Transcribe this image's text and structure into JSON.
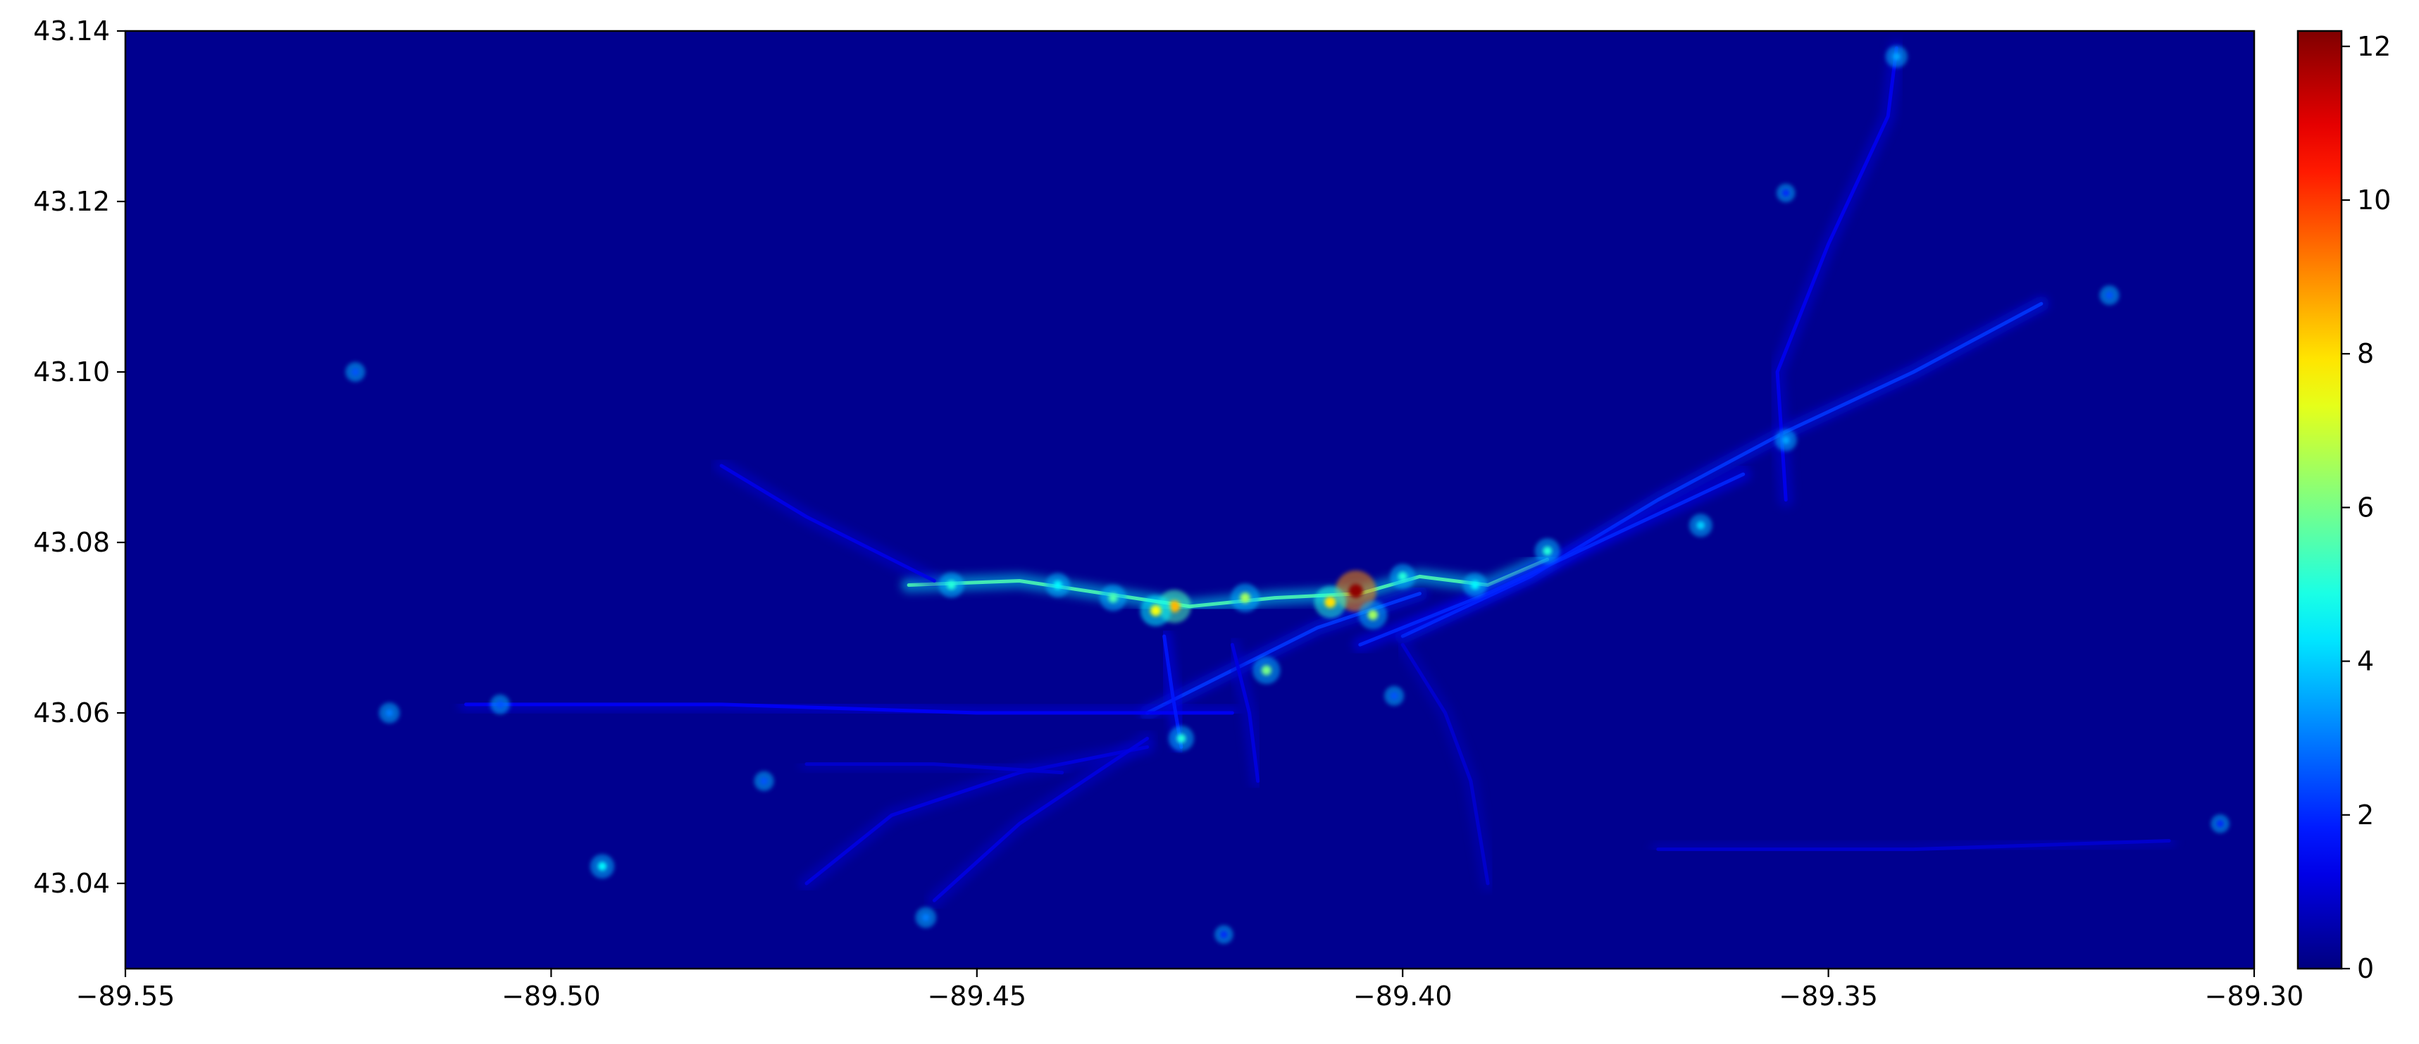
{
  "chart_data": {
    "type": "heatmap",
    "title": "",
    "xlabel": "",
    "ylabel": "",
    "xlim": [
      -89.55,
      -89.3
    ],
    "ylim": [
      43.03,
      43.14
    ],
    "x_ticks": [
      -89.55,
      -89.5,
      -89.45,
      -89.4,
      -89.35,
      -89.3
    ],
    "x_tick_labels": [
      "−89.55",
      "−89.50",
      "−89.45",
      "−89.40",
      "−89.35",
      "−89.30"
    ],
    "y_ticks": [
      43.04,
      43.06,
      43.08,
      43.1,
      43.12,
      43.14
    ],
    "y_tick_labels": [
      "43.04",
      "43.06",
      "43.08",
      "43.10",
      "43.12",
      "43.14"
    ],
    "colormap": "jet",
    "background_color": "#00008f",
    "colorbar": {
      "range": [
        0,
        12.2
      ],
      "ticks": [
        0,
        2,
        4,
        6,
        8,
        10,
        12
      ],
      "tick_labels": [
        "0",
        "2",
        "4",
        "6",
        "8",
        "10",
        "12"
      ]
    },
    "hotspots": [
      {
        "lon": -89.4055,
        "lat": 43.0743,
        "value": 12.0
      },
      {
        "lon": -89.4268,
        "lat": 43.0725,
        "value": 8.5
      },
      {
        "lon": -89.429,
        "lat": 43.072,
        "value": 7.5
      },
      {
        "lon": -89.4085,
        "lat": 43.073,
        "value": 8.0
      },
      {
        "lon": -89.4035,
        "lat": 43.0715,
        "value": 6.5
      },
      {
        "lon": -89.4185,
        "lat": 43.0735,
        "value": 6.5
      },
      {
        "lon": -89.434,
        "lat": 43.0735,
        "value": 5.5
      },
      {
        "lon": -89.416,
        "lat": 43.065,
        "value": 6.0
      },
      {
        "lon": -89.426,
        "lat": 43.057,
        "value": 5.0
      },
      {
        "lon": -89.453,
        "lat": 43.075,
        "value": 5.0
      },
      {
        "lon": -89.4405,
        "lat": 43.075,
        "value": 4.5
      },
      {
        "lon": -89.4,
        "lat": 43.076,
        "value": 5.0
      },
      {
        "lon": -89.3915,
        "lat": 43.075,
        "value": 4.5
      },
      {
        "lon": -89.383,
        "lat": 43.079,
        "value": 5.0
      },
      {
        "lon": -89.365,
        "lat": 43.082,
        "value": 4.0
      },
      {
        "lon": -89.342,
        "lat": 43.137,
        "value": 3.5
      },
      {
        "lon": -89.355,
        "lat": 43.092,
        "value": 3.5
      },
      {
        "lon": -89.494,
        "lat": 43.042,
        "value": 4.5
      },
      {
        "lon": -89.519,
        "lat": 43.06,
        "value": 3.0
      },
      {
        "lon": -89.506,
        "lat": 43.061,
        "value": 2.5
      },
      {
        "lon": -89.523,
        "lat": 43.1,
        "value": 2.5
      },
      {
        "lon": -89.456,
        "lat": 43.036,
        "value": 3.0
      },
      {
        "lon": -89.475,
        "lat": 43.052,
        "value": 2.5
      },
      {
        "lon": -89.401,
        "lat": 43.062,
        "value": 2.5
      },
      {
        "lon": -89.317,
        "lat": 43.109,
        "value": 2.5
      },
      {
        "lon": -89.304,
        "lat": 43.047,
        "value": 2.0
      },
      {
        "lon": -89.421,
        "lat": 43.034,
        "value": 2.0
      },
      {
        "lon": -89.355,
        "lat": 43.121,
        "value": 2.0
      }
    ],
    "corridors": [
      {
        "points": [
          [
            -89.458,
            43.075
          ],
          [
            -89.445,
            43.0755
          ],
          [
            -89.435,
            43.074
          ],
          [
            -89.425,
            43.0725
          ],
          [
            -89.415,
            43.0735
          ],
          [
            -89.405,
            43.074
          ],
          [
            -89.398,
            43.076
          ],
          [
            -89.39,
            43.075
          ],
          [
            -89.383,
            43.078
          ]
        ],
        "value": 5.5
      },
      {
        "points": [
          [
            -89.4,
            43.069
          ],
          [
            -89.385,
            43.076
          ],
          [
            -89.37,
            43.085
          ],
          [
            -89.355,
            43.093
          ],
          [
            -89.34,
            43.1
          ],
          [
            -89.325,
            43.108
          ]
        ],
        "value": 2.2
      },
      {
        "points": [
          [
            -89.405,
            43.068
          ],
          [
            -89.39,
            43.074
          ],
          [
            -89.375,
            43.081
          ],
          [
            -89.36,
            43.088
          ]
        ],
        "value": 2.0
      },
      {
        "points": [
          [
            -89.43,
            43.06
          ],
          [
            -89.42,
            43.065
          ],
          [
            -89.41,
            43.07
          ],
          [
            -89.398,
            43.074
          ]
        ],
        "value": 2.2
      },
      {
        "points": [
          [
            -89.51,
            43.061
          ],
          [
            -89.48,
            43.061
          ],
          [
            -89.45,
            43.06
          ],
          [
            -89.42,
            43.06
          ]
        ],
        "value": 1.5
      },
      {
        "points": [
          [
            -89.428,
            43.069
          ],
          [
            -89.427,
            43.062
          ],
          [
            -89.426,
            43.056
          ]
        ],
        "value": 1.8
      },
      {
        "points": [
          [
            -89.355,
            43.085
          ],
          [
            -89.356,
            43.1
          ],
          [
            -89.35,
            43.115
          ],
          [
            -89.343,
            43.13
          ],
          [
            -89.342,
            43.138
          ]
        ],
        "value": 1.4
      },
      {
        "points": [
          [
            -89.48,
            43.089
          ],
          [
            -89.47,
            43.083
          ],
          [
            -89.46,
            43.078
          ],
          [
            -89.455,
            43.0755
          ]
        ],
        "value": 1.3
      },
      {
        "points": [
          [
            -89.47,
            43.04
          ],
          [
            -89.46,
            43.048
          ],
          [
            -89.445,
            43.053
          ],
          [
            -89.43,
            43.056
          ]
        ],
        "value": 1.2
      },
      {
        "points": [
          [
            -89.43,
            43.057
          ],
          [
            -89.445,
            43.047
          ],
          [
            -89.455,
            43.038
          ]
        ],
        "value": 1.2
      },
      {
        "points": [
          [
            -89.47,
            43.054
          ],
          [
            -89.455,
            43.054
          ],
          [
            -89.44,
            43.053
          ]
        ],
        "value": 1.0
      },
      {
        "points": [
          [
            -89.37,
            43.044
          ],
          [
            -89.34,
            43.044
          ],
          [
            -89.31,
            43.045
          ]
        ],
        "value": 1.0
      },
      {
        "points": [
          [
            -89.4,
            43.068
          ],
          [
            -89.395,
            43.06
          ],
          [
            -89.392,
            43.052
          ],
          [
            -89.39,
            43.04
          ]
        ],
        "value": 1.0
      },
      {
        "points": [
          [
            -89.42,
            43.068
          ],
          [
            -89.418,
            43.06
          ],
          [
            -89.417,
            43.052
          ]
        ],
        "value": 1.2
      }
    ]
  }
}
